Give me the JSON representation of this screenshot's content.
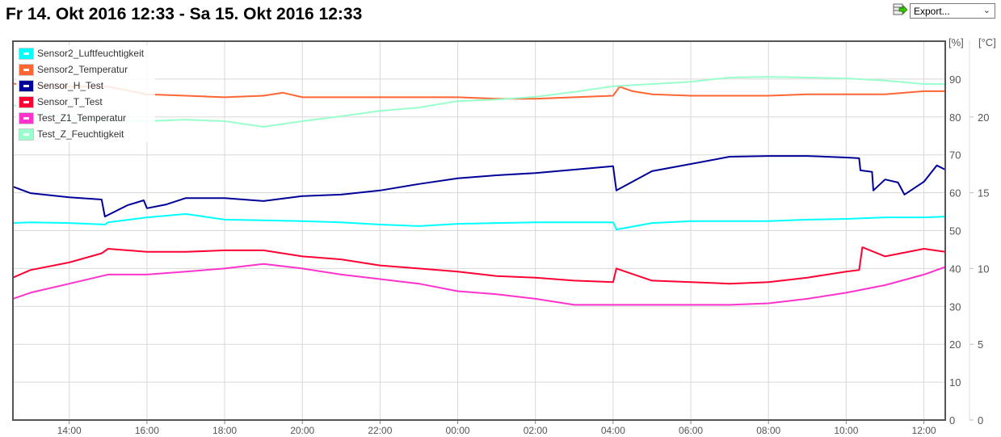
{
  "header": {
    "title": "Fr 14. Okt 2016 12:33 - Sa 15. Okt 2016 12:33",
    "export_label": "Export...",
    "export_icon": "table-export-icon"
  },
  "chart_data": {
    "type": "line",
    "title": "Fr 14. Okt 2016 12:33 - Sa 15. Okt 2016 12:33",
    "grid": true,
    "legend_position": "top-left",
    "x": {
      "range": [
        "Fr 12:33",
        "Sa 12:33"
      ],
      "ticks": [
        "14:00",
        "16:00",
        "18:00",
        "20:00",
        "22:00",
        "00:00",
        "02:00",
        "04:00",
        "06:00",
        "08:00",
        "10:00",
        "12:00"
      ]
    },
    "y_left": {
      "label": "[%]",
      "range": [
        0,
        100
      ],
      "ticks": [
        0,
        10,
        20,
        30,
        40,
        50,
        60,
        70,
        80,
        90
      ]
    },
    "y_right": {
      "label": "[°C]",
      "range": [
        0,
        25
      ],
      "ticks": [
        0,
        5,
        10,
        15,
        20
      ]
    },
    "series": [
      {
        "name": "Sensor2_Luftfeuchtigkeit",
        "axis": "%",
        "color": "#00ffff",
        "points": [
          [
            "Fr 12:33",
            52.0
          ],
          [
            "Fr 13:00",
            52.2
          ],
          [
            "Fr 14:00",
            52.0
          ],
          [
            "Fr 14:55",
            51.6
          ],
          [
            "Fr 15:00",
            52.2
          ],
          [
            "Fr 16:00",
            53.5
          ],
          [
            "Fr 17:00",
            54.4
          ],
          [
            "Fr 18:00",
            52.9
          ],
          [
            "Fr 19:00",
            52.7
          ],
          [
            "Fr 20:00",
            52.5
          ],
          [
            "Fr 21:00",
            52.2
          ],
          [
            "Fr 22:00",
            51.6
          ],
          [
            "Fr 23:00",
            51.2
          ],
          [
            "Sa 00:00",
            51.8
          ],
          [
            "Sa 01:00",
            52.0
          ],
          [
            "Sa 02:00",
            52.2
          ],
          [
            "Sa 03:00",
            52.2
          ],
          [
            "Sa 04:00",
            52.2
          ],
          [
            "Sa 04:05",
            50.3
          ],
          [
            "Sa 05:00",
            52.0
          ],
          [
            "Sa 06:00",
            52.5
          ],
          [
            "Sa 07:00",
            52.5
          ],
          [
            "Sa 08:00",
            52.5
          ],
          [
            "Sa 09:00",
            52.9
          ],
          [
            "Sa 10:00",
            53.1
          ],
          [
            "Sa 11:00",
            53.5
          ],
          [
            "Sa 12:00",
            53.5
          ],
          [
            "Sa 12:33",
            53.7
          ]
        ]
      },
      {
        "name": "Sensor2_Temperatur",
        "axis": "°C",
        "color": "#ff6633",
        "points": [
          [
            "Fr 12:33",
            22.2
          ],
          [
            "Fr 13:00",
            22.1
          ],
          [
            "Fr 14:00",
            22.0
          ],
          [
            "Fr 15:00",
            22.0
          ],
          [
            "Fr 16:00",
            21.5
          ],
          [
            "Fr 17:00",
            21.4
          ],
          [
            "Fr 18:00",
            21.3
          ],
          [
            "Fr 19:00",
            21.4
          ],
          [
            "Fr 19:30",
            21.6
          ],
          [
            "Fr 20:00",
            21.3
          ],
          [
            "Fr 21:00",
            21.3
          ],
          [
            "Fr 22:00",
            21.3
          ],
          [
            "Fr 23:00",
            21.3
          ],
          [
            "Sa 00:00",
            21.3
          ],
          [
            "Sa 01:00",
            21.2
          ],
          [
            "Sa 02:00",
            21.2
          ],
          [
            "Sa 03:00",
            21.3
          ],
          [
            "Sa 04:00",
            21.4
          ],
          [
            "Sa 04:10",
            22.0
          ],
          [
            "Sa 04:30",
            21.7
          ],
          [
            "Sa 05:00",
            21.5
          ],
          [
            "Sa 06:00",
            21.4
          ],
          [
            "Sa 07:00",
            21.4
          ],
          [
            "Sa 08:00",
            21.4
          ],
          [
            "Sa 09:00",
            21.5
          ],
          [
            "Sa 10:00",
            21.5
          ],
          [
            "Sa 11:00",
            21.5
          ],
          [
            "Sa 12:00",
            21.7
          ],
          [
            "Sa 12:33",
            21.7
          ]
        ]
      },
      {
        "name": "Sensor_H_Test",
        "axis": "%",
        "color": "#000099",
        "points": [
          [
            "Fr 12:33",
            61.6
          ],
          [
            "Fr 13:00",
            59.9
          ],
          [
            "Fr 14:00",
            58.8
          ],
          [
            "Fr 14:50",
            58.2
          ],
          [
            "Fr 14:55",
            53.7
          ],
          [
            "Fr 15:30",
            56.7
          ],
          [
            "Fr 15:55",
            58.0
          ],
          [
            "Fr 16:00",
            55.9
          ],
          [
            "Fr 16:30",
            56.9
          ],
          [
            "Fr 17:00",
            58.6
          ],
          [
            "Fr 18:00",
            58.6
          ],
          [
            "Fr 19:00",
            57.8
          ],
          [
            "Fr 20:00",
            59.1
          ],
          [
            "Fr 21:00",
            59.5
          ],
          [
            "Fr 22:00",
            60.6
          ],
          [
            "Fr 23:00",
            62.3
          ],
          [
            "Sa 00:00",
            63.8
          ],
          [
            "Sa 01:00",
            64.6
          ],
          [
            "Sa 02:00",
            65.2
          ],
          [
            "Sa 03:00",
            66.1
          ],
          [
            "Sa 04:00",
            67.0
          ],
          [
            "Sa 04:05",
            60.6
          ],
          [
            "Sa 05:00",
            65.7
          ],
          [
            "Sa 06:00",
            67.6
          ],
          [
            "Sa 07:00",
            69.5
          ],
          [
            "Sa 08:00",
            69.7
          ],
          [
            "Sa 09:00",
            69.7
          ],
          [
            "Sa 10:00",
            69.3
          ],
          [
            "Sa 10:20",
            69.1
          ],
          [
            "Sa 10:22",
            65.9
          ],
          [
            "Sa 10:40",
            65.5
          ],
          [
            "Sa 10:42",
            60.6
          ],
          [
            "Sa 11:00",
            63.5
          ],
          [
            "Sa 11:20",
            62.7
          ],
          [
            "Sa 11:30",
            59.5
          ],
          [
            "Sa 12:00",
            62.9
          ],
          [
            "Sa 12:20",
            67.2
          ],
          [
            "Sa 12:33",
            66.1
          ]
        ]
      },
      {
        "name": "Sensor_T_Test",
        "axis": "°C",
        "color": "#ff0033",
        "points": [
          [
            "Fr 12:33",
            9.4
          ],
          [
            "Fr 13:00",
            9.9
          ],
          [
            "Fr 14:00",
            10.4
          ],
          [
            "Fr 14:50",
            11.0
          ],
          [
            "Fr 15:00",
            11.3
          ],
          [
            "Fr 16:00",
            11.1
          ],
          [
            "Fr 17:00",
            11.1
          ],
          [
            "Fr 18:00",
            11.2
          ],
          [
            "Fr 19:00",
            11.2
          ],
          [
            "Fr 20:00",
            10.8
          ],
          [
            "Fr 21:00",
            10.6
          ],
          [
            "Fr 22:00",
            10.2
          ],
          [
            "Fr 23:00",
            10.0
          ],
          [
            "Sa 00:00",
            9.8
          ],
          [
            "Sa 01:00",
            9.5
          ],
          [
            "Sa 02:00",
            9.4
          ],
          [
            "Sa 03:00",
            9.2
          ],
          [
            "Sa 04:00",
            9.1
          ],
          [
            "Sa 04:05",
            10.0
          ],
          [
            "Sa 05:00",
            9.2
          ],
          [
            "Sa 06:00",
            9.1
          ],
          [
            "Sa 07:00",
            9.0
          ],
          [
            "Sa 08:00",
            9.1
          ],
          [
            "Sa 09:00",
            9.4
          ],
          [
            "Sa 10:00",
            9.8
          ],
          [
            "Sa 10:20",
            9.9
          ],
          [
            "Sa 10:25",
            11.4
          ],
          [
            "Sa 11:00",
            10.8
          ],
          [
            "Sa 12:00",
            11.3
          ],
          [
            "Sa 12:33",
            11.1
          ]
        ]
      },
      {
        "name": "Test_Z1_Temperatur",
        "axis": "°C",
        "color": "#ff33cc",
        "points": [
          [
            "Fr 12:33",
            8.0
          ],
          [
            "Fr 13:00",
            8.4
          ],
          [
            "Fr 14:00",
            9.0
          ],
          [
            "Fr 15:00",
            9.6
          ],
          [
            "Fr 16:00",
            9.6
          ],
          [
            "Fr 17:00",
            9.8
          ],
          [
            "Fr 18:00",
            10.0
          ],
          [
            "Fr 19:00",
            10.3
          ],
          [
            "Fr 20:00",
            10.0
          ],
          [
            "Fr 21:00",
            9.6
          ],
          [
            "Fr 22:00",
            9.3
          ],
          [
            "Fr 23:00",
            9.0
          ],
          [
            "Sa 00:00",
            8.5
          ],
          [
            "Sa 01:00",
            8.3
          ],
          [
            "Sa 02:00",
            8.0
          ],
          [
            "Sa 03:00",
            7.6
          ],
          [
            "Sa 04:00",
            7.6
          ],
          [
            "Sa 05:00",
            7.6
          ],
          [
            "Sa 06:00",
            7.6
          ],
          [
            "Sa 07:00",
            7.6
          ],
          [
            "Sa 08:00",
            7.7
          ],
          [
            "Sa 09:00",
            8.0
          ],
          [
            "Sa 10:00",
            8.4
          ],
          [
            "Sa 11:00",
            8.9
          ],
          [
            "Sa 12:00",
            9.6
          ],
          [
            "Sa 12:33",
            10.1
          ]
        ]
      },
      {
        "name": "Test_Z_Feuchtigkeit",
        "axis": "%",
        "color": "#99ffcc",
        "points": [
          [
            "Fr 12:33",
            83.2
          ],
          [
            "Fr 13:00",
            81.7
          ],
          [
            "Fr 14:00",
            79.7
          ],
          [
            "Fr 15:00",
            79.1
          ],
          [
            "Fr 16:00",
            78.9
          ],
          [
            "Fr 17:00",
            79.3
          ],
          [
            "Fr 18:00",
            78.9
          ],
          [
            "Fr 19:00",
            77.4
          ],
          [
            "Fr 20:00",
            78.9
          ],
          [
            "Fr 21:00",
            80.2
          ],
          [
            "Fr 22:00",
            81.6
          ],
          [
            "Fr 23:00",
            82.5
          ],
          [
            "Sa 00:00",
            84.2
          ],
          [
            "Sa 01:00",
            84.6
          ],
          [
            "Sa 02:00",
            85.3
          ],
          [
            "Sa 03:00",
            86.6
          ],
          [
            "Sa 04:00",
            88.1
          ],
          [
            "Sa 05:00",
            88.7
          ],
          [
            "Sa 06:00",
            89.3
          ],
          [
            "Sa 07:00",
            90.4
          ],
          [
            "Sa 08:00",
            90.6
          ],
          [
            "Sa 09:00",
            90.4
          ],
          [
            "Sa 10:00",
            90.2
          ],
          [
            "Sa 11:00",
            89.6
          ],
          [
            "Sa 12:00",
            88.7
          ],
          [
            "Sa 12:33",
            88.7
          ]
        ]
      }
    ]
  }
}
